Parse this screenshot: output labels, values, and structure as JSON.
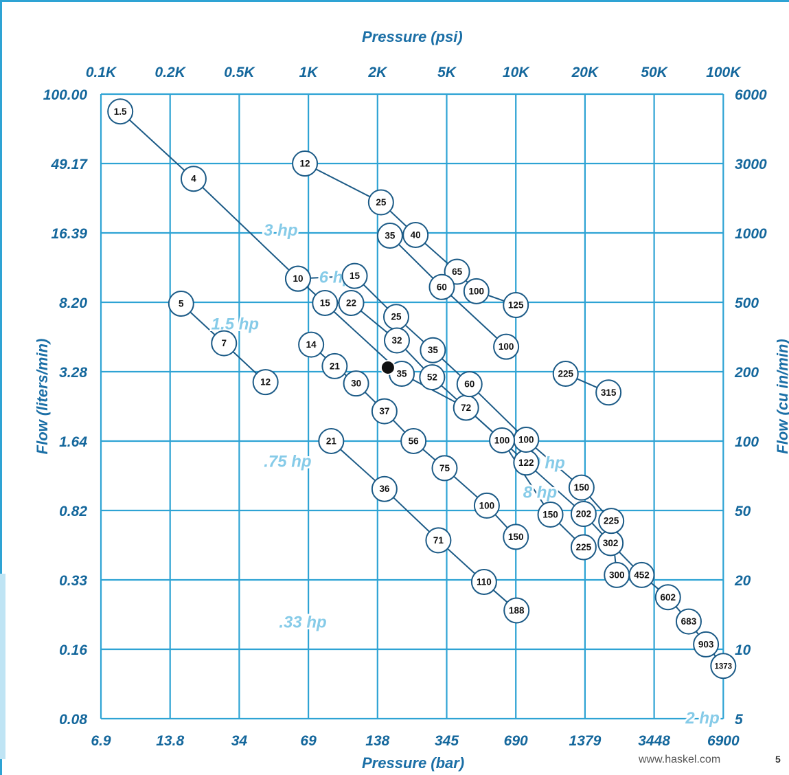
{
  "chart_data": {
    "type": "scatter",
    "title": "Pressure (psi)",
    "xlabel_top": "Pressure (psi)",
    "xlabel_bottom": "Pressure (bar)",
    "ylabel_left": "Flow (liters/min)",
    "ylabel_right": "Flow (cu in/min)",
    "x_ticks_top": [
      "0.1K",
      "0.2K",
      "0.5K",
      "1K",
      "2K",
      "5K",
      "10K",
      "20K",
      "50K",
      "100K"
    ],
    "x_ticks_bottom": [
      "6.9",
      "13.8",
      "34",
      "69",
      "138",
      "345",
      "690",
      "1379",
      "3448",
      "6900"
    ],
    "y_ticks_left": [
      "100.00",
      "49.17",
      "16.39",
      "8.20",
      "3.28",
      "1.64",
      "0.82",
      "0.33",
      "0.16",
      "0.08"
    ],
    "y_ticks_right": [
      "6000",
      "3000",
      "1000",
      "500",
      "200",
      "100",
      "50",
      "20",
      "10",
      "5"
    ],
    "grid": true,
    "scale": "log-log (tick positions evenly spaced)",
    "hp_labels": [
      {
        "text": "3 hp",
        "p": 2.6,
        "f": 1.95
      },
      {
        "text": "6 hp",
        "p": 3.4,
        "f": 2.63
      },
      {
        "text": "1.5 hp",
        "p": 1.94,
        "f": 3.3
      },
      {
        "text": ".75 hp",
        "p": 2.7,
        "f": 5.28
      },
      {
        "text": ".33 hp",
        "p": 2.92,
        "f": 7.6
      },
      {
        "text": "10 hp",
        "p": 6.4,
        "f": 5.3
      },
      {
        "text": "8 hp",
        "p": 6.35,
        "f": 5.73
      },
      {
        "text": "2 hp",
        "p": 8.7,
        "f": 8.98
      }
    ],
    "series": [
      {
        "points": [
          {
            "label": "1.5",
            "p": 0.28,
            "f": 0.25
          },
          {
            "label": "4",
            "p": 1.34,
            "f": 1.22
          },
          {
            "label": "10",
            "p": 2.85,
            "f": 2.66
          },
          {
            "label": "35",
            "p": 4.35,
            "f": 4.03
          },
          {
            "label": "72",
            "p": 5.28,
            "f": 4.52
          },
          {
            "label": "122",
            "p": 6.15,
            "f": 5.31
          },
          {
            "label": "202",
            "p": 6.98,
            "f": 6.05
          },
          {
            "label": "302",
            "p": 7.37,
            "f": 6.47
          },
          {
            "label": "452",
            "p": 7.82,
            "f": 6.93
          },
          {
            "label": "602",
            "p": 8.2,
            "f": 7.25
          },
          {
            "label": "683",
            "p": 8.5,
            "f": 7.6
          },
          {
            "label": "903",
            "p": 8.75,
            "f": 7.93
          },
          {
            "label": "1373",
            "p": 9.0,
            "f": 8.24
          }
        ]
      },
      {
        "points": [
          {
            "label": "12",
            "p": 2.95,
            "f": 1.0
          },
          {
            "label": "25",
            "p": 4.05,
            "f": 1.56
          },
          {
            "label": "40",
            "p": 4.55,
            "f": 2.03
          },
          {
            "label": "65",
            "p": 5.15,
            "f": 2.56
          },
          {
            "label": "100",
            "p": 5.43,
            "f": 2.84
          },
          {
            "label": "125",
            "p": 6.0,
            "f": 3.04
          }
        ]
      },
      {
        "points": [
          {
            "label": "35",
            "p": 4.18,
            "f": 2.04
          },
          {
            "label": "60",
            "p": 4.93,
            "f": 2.78
          },
          {
            "label": "100",
            "p": 5.86,
            "f": 3.64
          }
        ]
      },
      {
        "points": [
          {
            "label": "10",
            "p": 2.85,
            "f": 2.66
          },
          {
            "label": "15",
            "p": 3.67,
            "f": 2.62
          },
          {
            "label": "25",
            "p": 4.27,
            "f": 3.21
          },
          {
            "label": "35",
            "p": 4.8,
            "f": 3.69
          },
          {
            "label": "60",
            "p": 5.33,
            "f": 4.18
          },
          {
            "label": "100",
            "p": 6.15,
            "f": 4.98
          },
          {
            "label": "150",
            "p": 6.95,
            "f": 5.67
          },
          {
            "label": "225",
            "p": 7.38,
            "f": 6.15
          },
          {
            "label": "300",
            "p": 7.46,
            "f": 6.93
          }
        ]
      },
      {
        "points": [
          {
            "label": "15",
            "p": 3.24,
            "f": 3.01
          },
          {
            "label": "22",
            "p": 3.62,
            "f": 3.01
          },
          {
            "label": "32",
            "p": 4.28,
            "f": 3.55
          },
          {
            "label": "52",
            "p": 4.79,
            "f": 4.08
          },
          {
            "label": "100",
            "p": 5.8,
            "f": 4.99
          },
          {
            "label": "150",
            "p": 6.5,
            "f": 6.06
          },
          {
            "label": "225",
            "p": 6.98,
            "f": 6.53
          }
        ]
      },
      {
        "points": [
          {
            "label": "14",
            "p": 3.04,
            "f": 3.61
          },
          {
            "label": "21",
            "p": 3.38,
            "f": 3.92
          },
          {
            "label": "30",
            "p": 3.69,
            "f": 4.17
          },
          {
            "label": "37",
            "p": 4.1,
            "f": 4.57
          },
          {
            "label": "56",
            "p": 4.52,
            "f": 5.0
          },
          {
            "label": "75",
            "p": 4.97,
            "f": 5.39
          },
          {
            "label": "100",
            "p": 5.58,
            "f": 5.93
          },
          {
            "label": "150",
            "p": 6.0,
            "f": 6.38
          }
        ]
      },
      {
        "points": [
          {
            "label": "5",
            "p": 1.16,
            "f": 3.02
          },
          {
            "label": "7",
            "p": 1.78,
            "f": 3.59
          },
          {
            "label": "12",
            "p": 2.38,
            "f": 4.15
          }
        ]
      },
      {
        "points": [
          {
            "label": "21",
            "p": 3.33,
            "f": 5.0
          },
          {
            "label": "36",
            "p": 4.1,
            "f": 5.69
          },
          {
            "label": "71",
            "p": 4.88,
            "f": 6.43
          },
          {
            "label": "110",
            "p": 5.54,
            "f": 7.03
          },
          {
            "label": "188",
            "p": 6.01,
            "f": 7.44
          }
        ]
      },
      {
        "points": [
          {
            "label": "225",
            "p": 6.72,
            "f": 4.03
          },
          {
            "label": "315",
            "p": 7.34,
            "f": 4.3
          }
        ]
      }
    ],
    "marker": {
      "p": 4.15,
      "f": 3.94
    }
  },
  "footer": {
    "url": "www.haskel.com",
    "page": "5"
  }
}
